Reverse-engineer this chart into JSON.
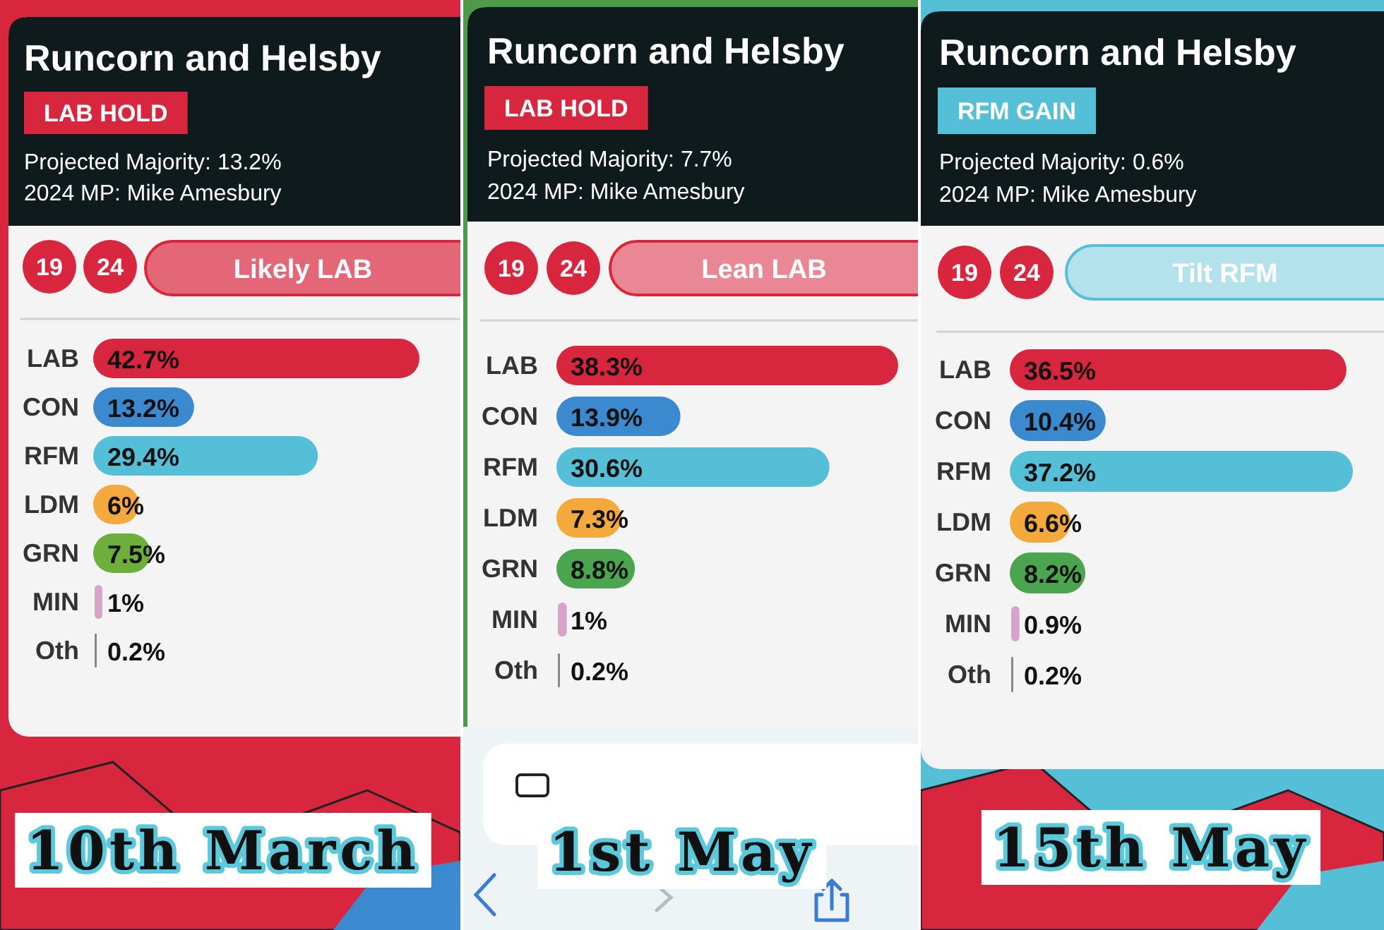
{
  "chart_data": [
    {
      "type": "bar",
      "orientation": "horizontal",
      "title": "Runcorn and Helsby",
      "annotations": [
        "LAB HOLD",
        "Projected Majority: 13.2%",
        "2024 MP: Mike Amesbury",
        "19",
        "24",
        "Likely LAB",
        "10th March"
      ],
      "categories": [
        "LAB",
        "CON",
        "RFM",
        "LDM",
        "GRN",
        "MIN",
        "Oth"
      ],
      "values": [
        42.7,
        13.2,
        29.4,
        6,
        7.5,
        1,
        0.2
      ],
      "value_labels": [
        "42.7%",
        "13.2%",
        "29.4%",
        "6%",
        "7.5%",
        "1%",
        "0.2%"
      ],
      "colors": [
        "#d7263d",
        "#3b8ad0",
        "#55bfd8",
        "#f4a93c",
        "#6eae3a",
        "#d8a3c8",
        "#888888"
      ]
    },
    {
      "type": "bar",
      "orientation": "horizontal",
      "title": "Runcorn and Helsby",
      "annotations": [
        "LAB HOLD",
        "Projected Majority: 7.7%",
        "2024 MP: Mike Amesbury",
        "19",
        "24",
        "Lean LAB",
        "1st May"
      ],
      "categories": [
        "LAB",
        "CON",
        "RFM",
        "LDM",
        "GRN",
        "MIN",
        "Oth"
      ],
      "values": [
        38.3,
        13.9,
        30.6,
        7.3,
        8.8,
        1,
        0.2
      ],
      "value_labels": [
        "38.3%",
        "13.9%",
        "30.6%",
        "7.3%",
        "8.8%",
        "1%",
        "0.2%"
      ],
      "colors": [
        "#d7263d",
        "#3b8ad0",
        "#55bfd8",
        "#f4a93c",
        "#4aa54e",
        "#d8a3c8",
        "#888888"
      ]
    },
    {
      "type": "bar",
      "orientation": "horizontal",
      "title": "Runcorn and Helsby",
      "annotations": [
        "RFM GAIN",
        "Projected Majority: 0.6%",
        "2024 MP: Mike Amesbury",
        "19",
        "24",
        "Tilt RFM",
        "15th May"
      ],
      "categories": [
        "LAB",
        "CON",
        "RFM",
        "LDM",
        "GRN",
        "MIN",
        "Oth"
      ],
      "values": [
        36.5,
        10.4,
        37.2,
        6.6,
        8.2,
        0.9,
        0.2
      ],
      "value_labels": [
        "36.5%",
        "10.4%",
        "37.2%",
        "6.6%",
        "8.2%",
        "0.9%",
        "0.2%"
      ],
      "colors": [
        "#d7263d",
        "#3b8ad0",
        "#55bfd8",
        "#f4a93c",
        "#4aa54e",
        "#d8a3c8",
        "#888888"
      ]
    }
  ]
}
